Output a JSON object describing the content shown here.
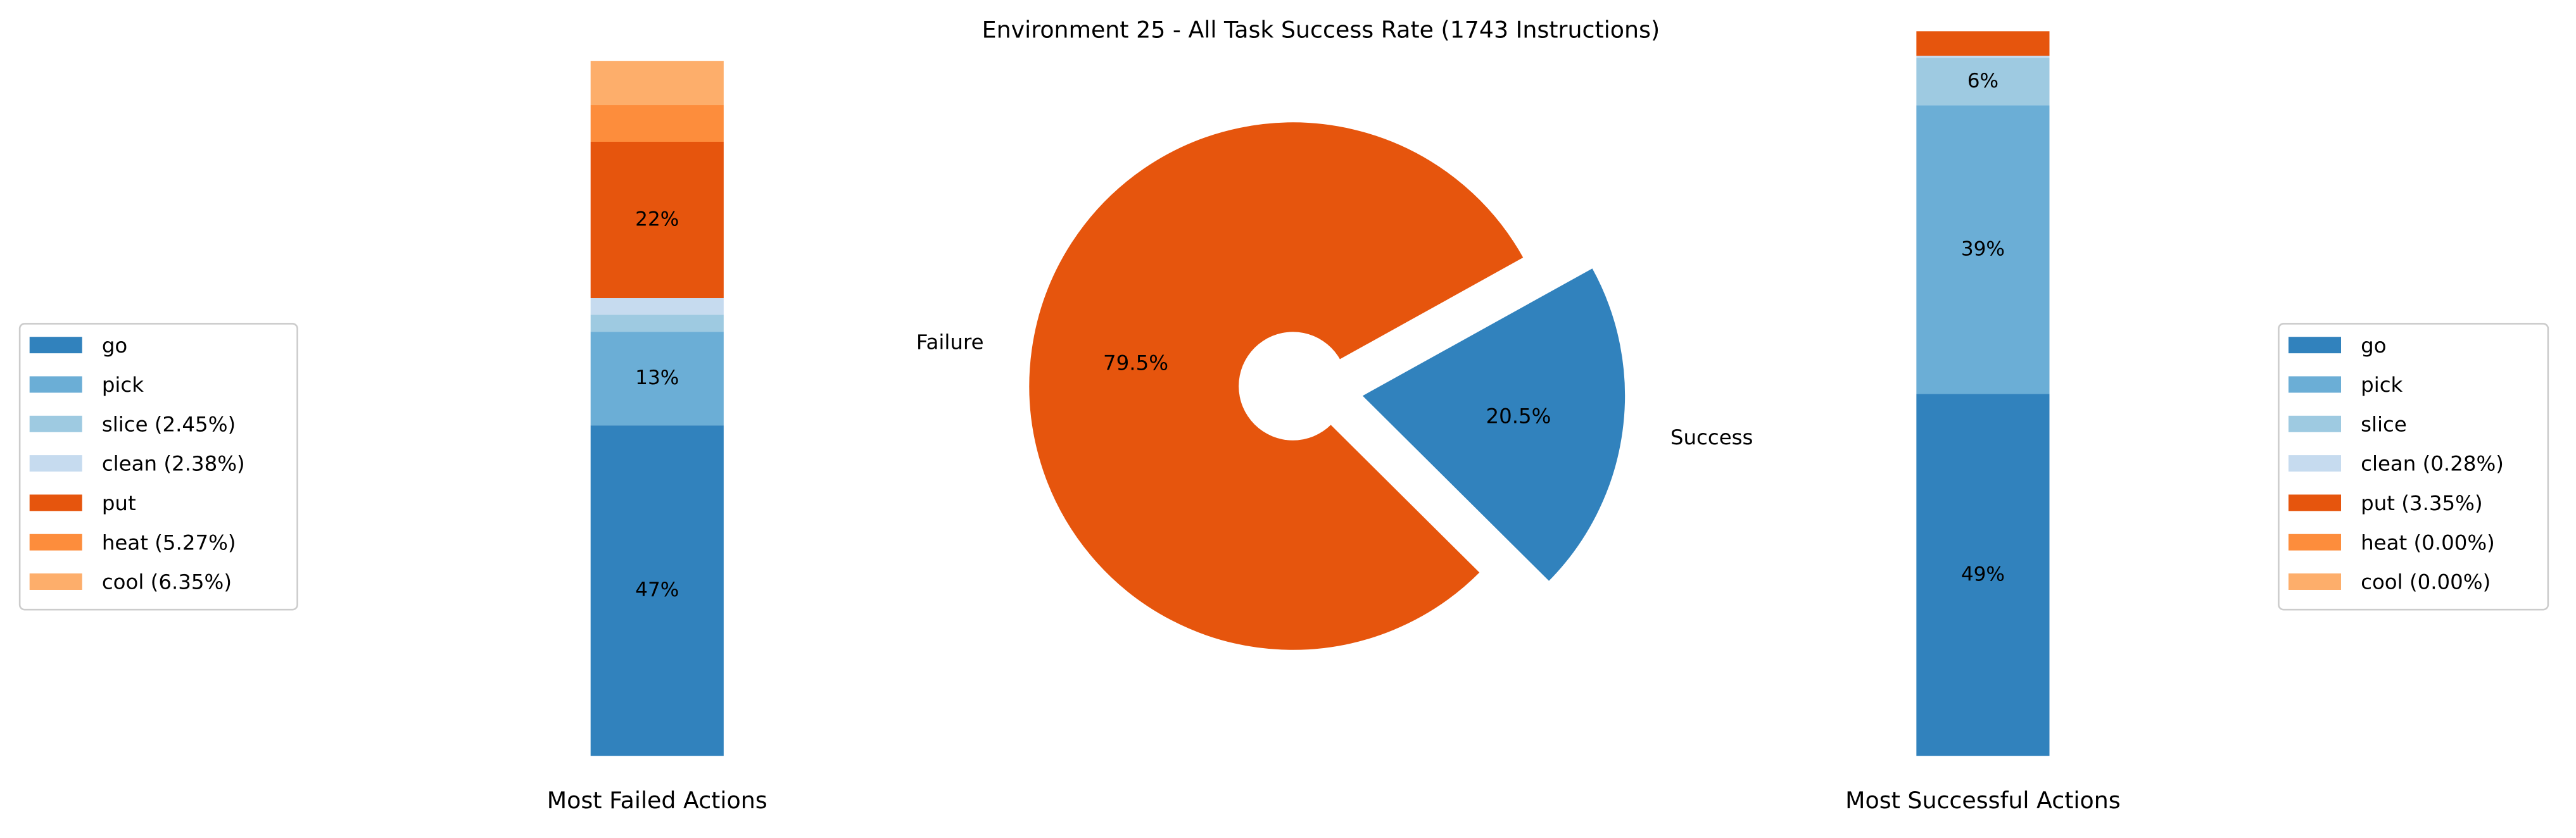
{
  "chart_data": [
    {
      "type": "bar",
      "xlabel": "Most Failed Actions",
      "ylim": [
        0,
        105
      ],
      "series": [
        {
          "name": "go",
          "color": "#3182bd",
          "values": [
            47.45
          ],
          "value_labels": [
            "47%"
          ]
        },
        {
          "name": "pick",
          "color": "#6baed6",
          "values": [
            13.45
          ],
          "value_labels": [
            "13%"
          ]
        },
        {
          "name": "slice (2.45%)",
          "color": "#9ecae1",
          "values": [
            2.45
          ],
          "value_labels": [
            null
          ]
        },
        {
          "name": "clean (2.38%)",
          "color": "#c6dbef",
          "values": [
            2.38
          ],
          "value_labels": [
            null
          ]
        },
        {
          "name": "put",
          "color": "#e6550d",
          "values": [
            22.45
          ],
          "value_labels": [
            "22%"
          ]
        },
        {
          "name": "heat (5.27%)",
          "color": "#fd8d3c",
          "values": [
            5.27
          ],
          "value_labels": [
            null
          ]
        },
        {
          "name": "cool (6.35%)",
          "color": "#fdae6b",
          "values": [
            6.35
          ],
          "value_labels": [
            null
          ]
        }
      ],
      "legend": "left"
    },
    {
      "type": "pie",
      "title": "Environment 25 - All Task Success Rate (1743 Instructions)",
      "categories": [
        "Failure",
        "Success"
      ],
      "values": [
        79.5,
        20.5
      ],
      "value_labels": [
        "79.5%",
        "20.5%"
      ],
      "colors": [
        "#e6550d",
        "#3182bd"
      ]
    },
    {
      "type": "bar",
      "xlabel": "Most Successful Actions",
      "ylim": [
        0,
        100
      ],
      "series": [
        {
          "name": "go",
          "color": "#3182bd",
          "values": [
            49.49
          ],
          "value_labels": [
            "49%"
          ]
        },
        {
          "name": "pick",
          "color": "#6baed6",
          "values": [
            39.49
          ],
          "value_labels": [
            "39%"
          ]
        },
        {
          "name": "slice",
          "color": "#9ecae1",
          "values": [
            6.49
          ],
          "value_labels": [
            "6%"
          ]
        },
        {
          "name": "clean (0.28%)",
          "color": "#c6dbef",
          "values": [
            0.28
          ],
          "value_labels": [
            null
          ]
        },
        {
          "name": "put (3.35%)",
          "color": "#e6550d",
          "values": [
            3.35
          ],
          "value_labels": [
            null
          ]
        },
        {
          "name": "heat (0.00%)",
          "color": "#fd8d3c",
          "values": [
            0.0
          ],
          "value_labels": [
            null
          ]
        },
        {
          "name": "cool (0.00%)",
          "color": "#fdae6b",
          "values": [
            0.0
          ],
          "value_labels": [
            null
          ]
        }
      ],
      "legend": "right"
    }
  ]
}
